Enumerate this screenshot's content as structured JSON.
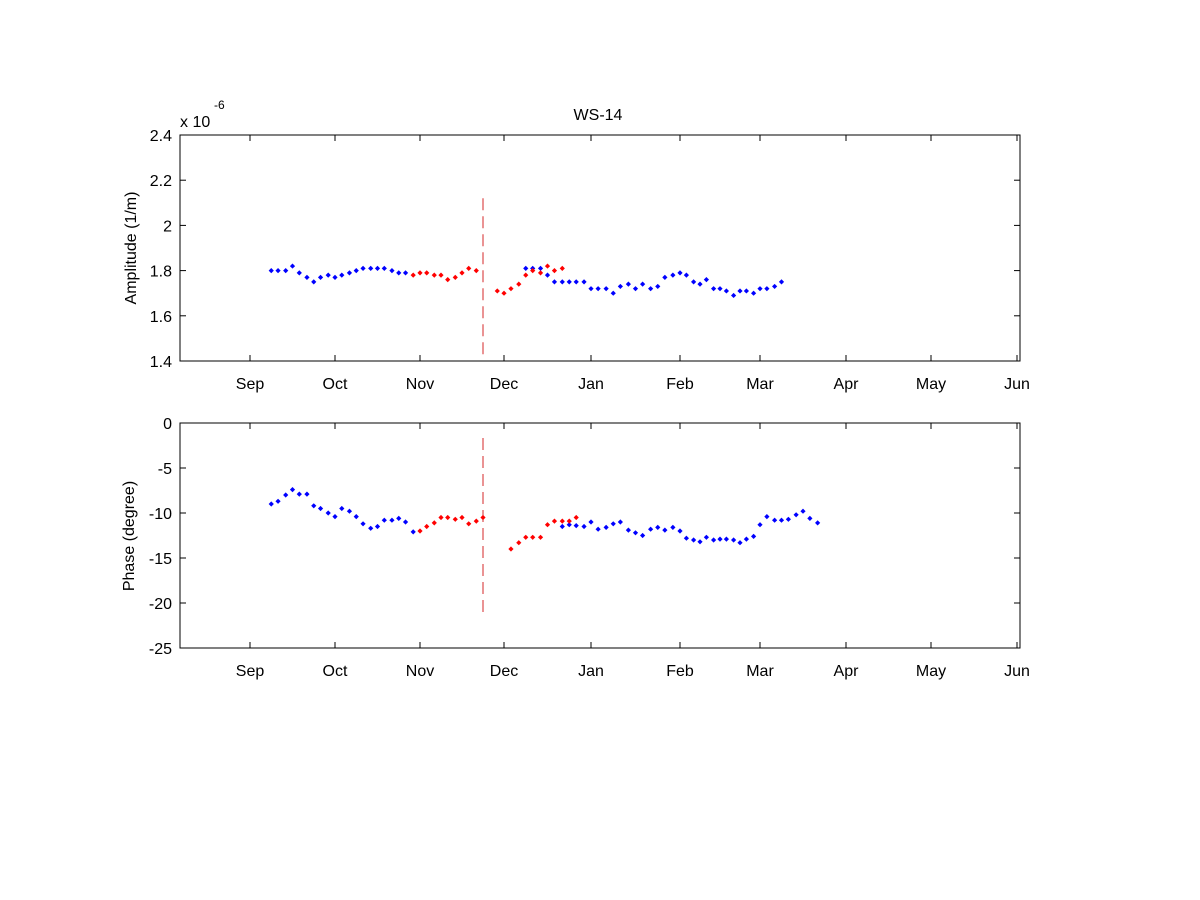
{
  "chart_data": [
    {
      "type": "scatter",
      "title": "WS-14",
      "ylabel": "Amplitude (1/m)",
      "xlabel": "",
      "exponent_label": "x 10",
      "exponent_power": "-6",
      "ylim": [
        1.4,
        2.4
      ],
      "yticks": [
        1.4,
        1.6,
        1.8,
        2.0,
        2.2,
        2.4
      ],
      "ytick_labels": [
        "1.4",
        "1.6",
        "1.8",
        "2",
        "2.2",
        "2.4"
      ],
      "xticks": [
        "Sep",
        "Oct",
        "Nov",
        "Dec",
        "Jan",
        "Feb",
        "Mar",
        "Apr",
        "May",
        "Jun"
      ],
      "grid": false,
      "gap_marker": {
        "x": 2.75,
        "y_range": [
          1.43,
          2.12
        ],
        "color": "#d62728",
        "style": "dashed"
      },
      "series": [
        {
          "color": "#0000ff",
          "points": [
            [
              0.25,
              1.8
            ],
            [
              0.33,
              1.8
            ],
            [
              0.42,
              1.8
            ],
            [
              0.5,
              1.82
            ],
            [
              0.58,
              1.79
            ],
            [
              0.67,
              1.77
            ],
            [
              0.75,
              1.75
            ],
            [
              0.83,
              1.77
            ],
            [
              0.92,
              1.78
            ],
            [
              1.0,
              1.77
            ],
            [
              1.08,
              1.78
            ],
            [
              1.17,
              1.79
            ],
            [
              1.25,
              1.8
            ],
            [
              1.33,
              1.81
            ],
            [
              1.42,
              1.81
            ],
            [
              1.5,
              1.81
            ],
            [
              1.58,
              1.81
            ],
            [
              1.67,
              1.8
            ],
            [
              1.75,
              1.79
            ],
            [
              1.83,
              1.79
            ],
            [
              3.25,
              1.81
            ],
            [
              3.33,
              1.81
            ],
            [
              3.42,
              1.81
            ],
            [
              3.5,
              1.78
            ],
            [
              3.58,
              1.75
            ],
            [
              3.67,
              1.75
            ],
            [
              3.75,
              1.75
            ],
            [
              3.83,
              1.75
            ],
            [
              3.92,
              1.75
            ],
            [
              4.0,
              1.72
            ],
            [
              4.08,
              1.72
            ],
            [
              4.17,
              1.72
            ],
            [
              4.25,
              1.7
            ],
            [
              4.33,
              1.73
            ],
            [
              4.42,
              1.74
            ],
            [
              4.5,
              1.72
            ],
            [
              4.58,
              1.74
            ],
            [
              4.67,
              1.72
            ],
            [
              4.75,
              1.73
            ],
            [
              4.83,
              1.77
            ],
            [
              4.92,
              1.78
            ],
            [
              5.0,
              1.79
            ],
            [
              5.08,
              1.78
            ],
            [
              5.17,
              1.75
            ],
            [
              5.25,
              1.74
            ],
            [
              5.33,
              1.76
            ],
            [
              5.42,
              1.72
            ],
            [
              5.5,
              1.72
            ],
            [
              5.58,
              1.71
            ],
            [
              5.67,
              1.69
            ],
            [
              5.75,
              1.71
            ],
            [
              5.83,
              1.71
            ],
            [
              5.92,
              1.7
            ],
            [
              6.0,
              1.72
            ],
            [
              6.08,
              1.72
            ],
            [
              6.17,
              1.73
            ],
            [
              6.25,
              1.75
            ]
          ]
        },
        {
          "color": "#ff0000",
          "points": [
            [
              1.92,
              1.78
            ],
            [
              2.0,
              1.79
            ],
            [
              2.08,
              1.79
            ],
            [
              2.17,
              1.78
            ],
            [
              2.25,
              1.78
            ],
            [
              2.33,
              1.76
            ],
            [
              2.42,
              1.77
            ],
            [
              2.5,
              1.79
            ],
            [
              2.58,
              1.81
            ],
            [
              2.67,
              1.8
            ],
            [
              2.92,
              1.71
            ],
            [
              3.0,
              1.7
            ],
            [
              3.08,
              1.72
            ],
            [
              3.17,
              1.74
            ],
            [
              3.25,
              1.78
            ],
            [
              3.33,
              1.8
            ],
            [
              3.42,
              1.79
            ],
            [
              3.5,
              1.82
            ],
            [
              3.58,
              1.8
            ],
            [
              3.67,
              1.81
            ]
          ]
        }
      ]
    },
    {
      "type": "scatter",
      "title": "",
      "ylabel": "Phase (degree)",
      "xlabel": "",
      "ylim": [
        -25,
        0
      ],
      "yticks": [
        -25,
        -20,
        -15,
        -10,
        -5,
        0
      ],
      "ytick_labels": [
        "-25",
        "-20",
        "-15",
        "-10",
        "-5",
        "0"
      ],
      "xticks": [
        "Sep",
        "Oct",
        "Nov",
        "Dec",
        "Jan",
        "Feb",
        "Mar",
        "Apr",
        "May",
        "Jun"
      ],
      "grid": false,
      "gap_marker": {
        "x": 2.75,
        "y_range": [
          -21,
          -1
        ],
        "color": "#d62728",
        "style": "dashed"
      },
      "series": [
        {
          "color": "#0000ff",
          "points": [
            [
              0.25,
              -9.0
            ],
            [
              0.33,
              -8.7
            ],
            [
              0.42,
              -8.0
            ],
            [
              0.5,
              -7.4
            ],
            [
              0.58,
              -7.9
            ],
            [
              0.67,
              -7.9
            ],
            [
              0.75,
              -9.2
            ],
            [
              0.83,
              -9.5
            ],
            [
              0.92,
              -10.0
            ],
            [
              1.0,
              -10.4
            ],
            [
              1.08,
              -9.5
            ],
            [
              1.17,
              -9.8
            ],
            [
              1.25,
              -10.4
            ],
            [
              1.33,
              -11.2
            ],
            [
              1.42,
              -11.7
            ],
            [
              1.5,
              -11.5
            ],
            [
              1.58,
              -10.8
            ],
            [
              1.67,
              -10.8
            ],
            [
              1.75,
              -10.6
            ],
            [
              1.83,
              -11.0
            ],
            [
              1.92,
              -12.1
            ],
            [
              3.67,
              -11.5
            ],
            [
              3.75,
              -11.3
            ],
            [
              3.83,
              -11.4
            ],
            [
              3.92,
              -11.5
            ],
            [
              4.0,
              -11.0
            ],
            [
              4.08,
              -11.8
            ],
            [
              4.17,
              -11.6
            ],
            [
              4.25,
              -11.2
            ],
            [
              4.33,
              -11.0
            ],
            [
              4.42,
              -11.9
            ],
            [
              4.5,
              -12.2
            ],
            [
              4.58,
              -12.5
            ],
            [
              4.67,
              -11.8
            ],
            [
              4.75,
              -11.6
            ],
            [
              4.83,
              -11.9
            ],
            [
              4.92,
              -11.6
            ],
            [
              5.0,
              -12.0
            ],
            [
              5.08,
              -12.8
            ],
            [
              5.17,
              -13.0
            ],
            [
              5.25,
              -13.2
            ],
            [
              5.33,
              -12.7
            ],
            [
              5.42,
              -13.0
            ],
            [
              5.5,
              -12.9
            ],
            [
              5.58,
              -12.9
            ],
            [
              5.67,
              -13.0
            ],
            [
              5.75,
              -13.3
            ],
            [
              5.83,
              -12.9
            ],
            [
              5.92,
              -12.6
            ],
            [
              6.0,
              -11.3
            ],
            [
              6.08,
              -10.4
            ],
            [
              6.17,
              -10.8
            ],
            [
              6.25,
              -10.8
            ],
            [
              6.33,
              -10.7
            ],
            [
              6.42,
              -10.2
            ],
            [
              6.5,
              -9.8
            ],
            [
              6.58,
              -10.6
            ],
            [
              6.67,
              -11.1
            ]
          ]
        },
        {
          "color": "#ff0000",
          "points": [
            [
              2.0,
              -12.0
            ],
            [
              2.08,
              -11.5
            ],
            [
              2.17,
              -11.1
            ],
            [
              2.25,
              -10.5
            ],
            [
              2.33,
              -10.5
            ],
            [
              2.42,
              -10.7
            ],
            [
              2.5,
              -10.5
            ],
            [
              2.58,
              -11.2
            ],
            [
              2.67,
              -10.9
            ],
            [
              2.75,
              -10.5
            ],
            [
              3.08,
              -14.0
            ],
            [
              3.17,
              -13.3
            ],
            [
              3.25,
              -12.7
            ],
            [
              3.33,
              -12.7
            ],
            [
              3.42,
              -12.7
            ],
            [
              3.5,
              -11.3
            ],
            [
              3.58,
              -10.9
            ],
            [
              3.67,
              -10.9
            ],
            [
              3.75,
              -10.9
            ],
            [
              3.83,
              -10.5
            ]
          ]
        }
      ]
    }
  ]
}
